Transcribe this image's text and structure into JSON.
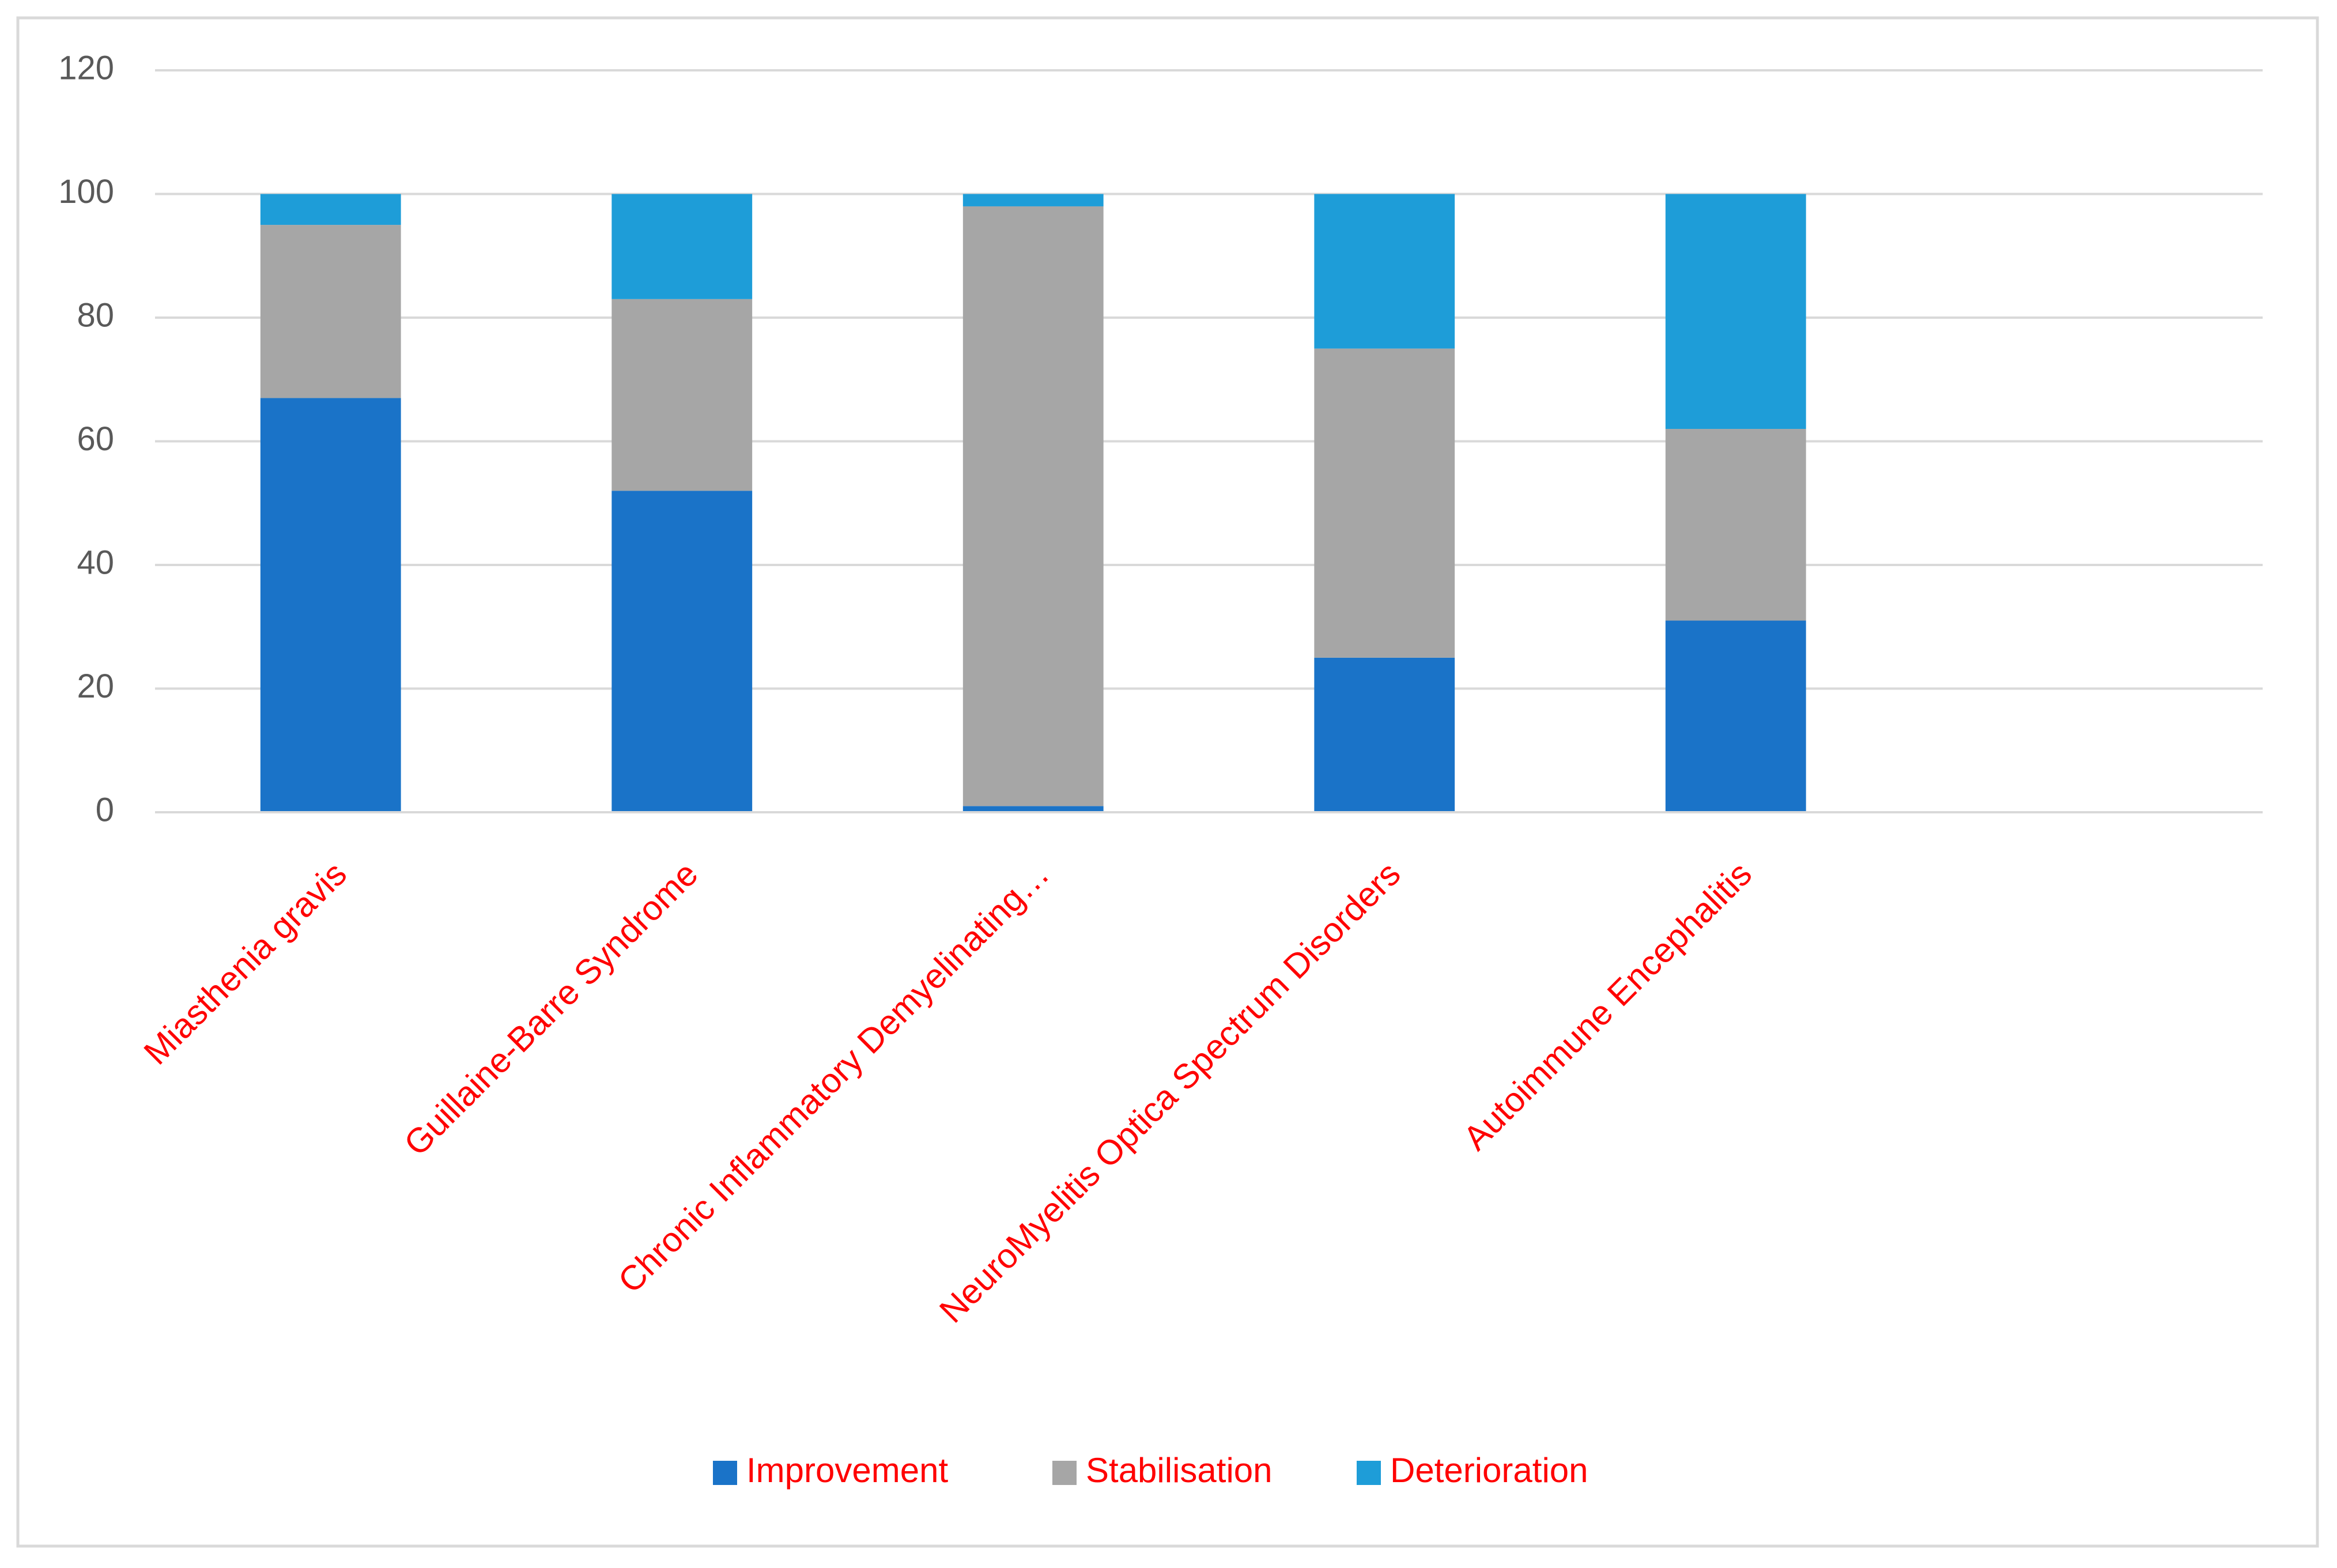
{
  "chart_data": {
    "type": "stacked_bar",
    "categories": [
      "Miasthenia gravis",
      "Guillaine-Barre Syndrome",
      "Chronic Inflammatory Demyelinating…",
      "NeuroMyelitis Optica Spectrum Disorders",
      "Autoimmune Encephalitis",
      null
    ],
    "series": [
      {
        "name": "Improvement",
        "color": "#1a73c8",
        "values": [
          67,
          52,
          1,
          25,
          31,
          null
        ]
      },
      {
        "name": "Stabilisation",
        "color": "#a6a6a6",
        "values": [
          28,
          31,
          97,
          50,
          31,
          null
        ]
      },
      {
        "name": "Deterioration",
        "color": "#1e9dd8",
        "values": [
          5,
          17,
          2,
          25,
          38,
          null
        ]
      }
    ],
    "ylim": [
      0,
      120
    ],
    "yticks": [
      0,
      20,
      40,
      60,
      80,
      100,
      120
    ],
    "grid": true,
    "legend": "bottom"
  }
}
